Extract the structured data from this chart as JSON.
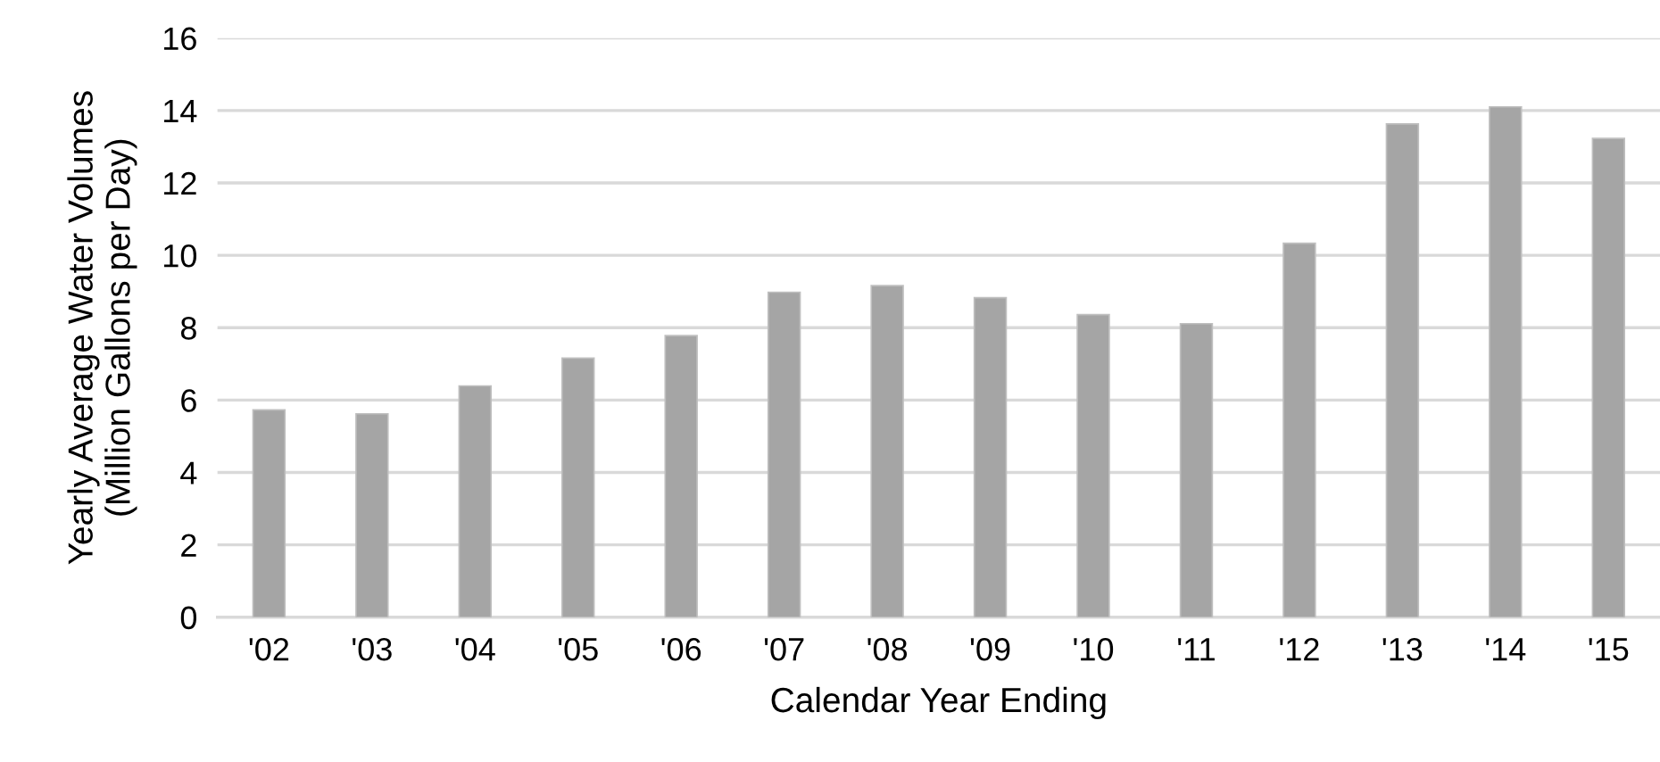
{
  "chart_data": {
    "type": "bar",
    "xlabel": "Calendar Year Ending",
    "ylabel": "Yearly Average Water Volumes\n(Million Gallons per Day)",
    "categories": [
      "'02",
      "'03",
      "'04",
      "'05",
      "'06",
      "'07",
      "'08",
      "'09",
      "'10",
      "'11",
      "'12",
      "'13",
      "'14",
      "'15"
    ],
    "values": [
      5.73,
      5.62,
      6.39,
      7.16,
      7.78,
      8.98,
      9.16,
      8.83,
      8.36,
      8.11,
      10.33,
      13.63,
      14.1,
      13.23
    ],
    "color": "#a5a5a5",
    "ylim": [
      0,
      16
    ],
    "yticks": [
      0,
      2,
      4,
      6,
      8,
      10,
      12,
      14,
      16
    ],
    "grid": "y"
  }
}
